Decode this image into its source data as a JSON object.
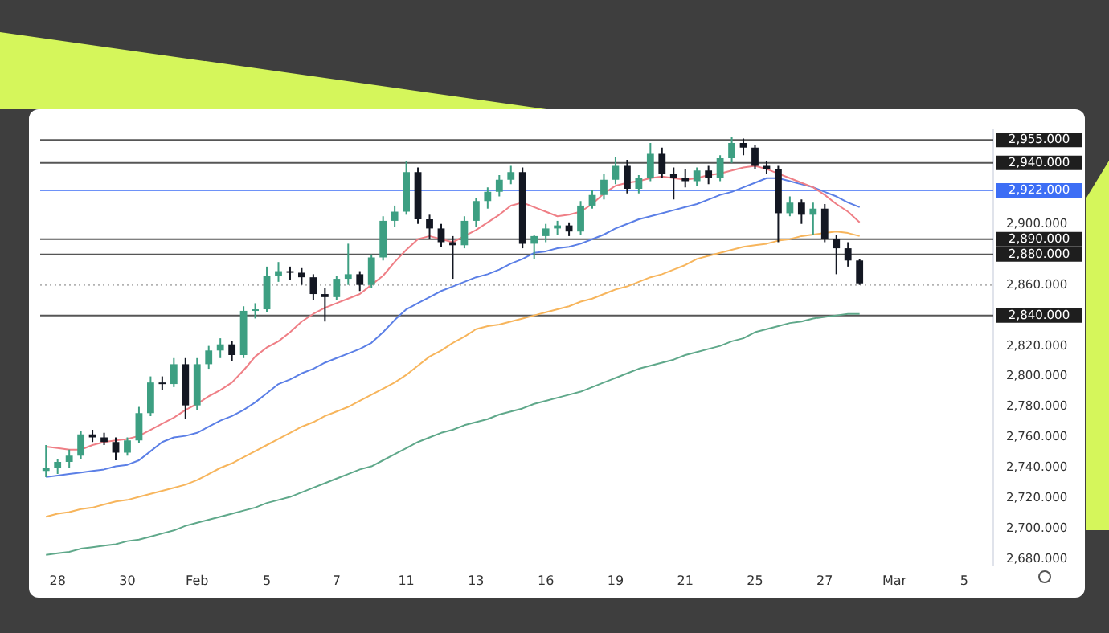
{
  "chart_data": {
    "type": "candlestick",
    "categories": [
      null,
      "28",
      null,
      null,
      null,
      null,
      null,
      "30",
      null,
      null,
      null,
      null,
      null,
      "Feb",
      null,
      null,
      null,
      null,
      null,
      "5",
      null,
      null,
      null,
      null,
      null,
      "7",
      null,
      null,
      null,
      null,
      null,
      "11",
      null,
      null,
      null,
      null,
      null,
      "13",
      null,
      null,
      null,
      null,
      null,
      "16",
      null,
      null,
      null,
      null,
      null,
      "19",
      null,
      null,
      null,
      null,
      null,
      "21",
      null,
      null,
      null,
      null,
      null,
      "25",
      null,
      null,
      null,
      null,
      null,
      "27",
      null,
      null,
      null,
      null,
      null,
      "Mar",
      null,
      null,
      null,
      null,
      null,
      "5",
      null,
      null
    ],
    "ohlc": [
      [
        2738,
        2755,
        2734,
        2740
      ],
      [
        2740,
        2746,
        2736,
        2744
      ],
      [
        2744,
        2752,
        2740,
        2748
      ],
      [
        2748,
        2764,
        2746,
        2762
      ],
      [
        2762,
        2765,
        2757,
        2760
      ],
      [
        2760,
        2763,
        2755,
        2757
      ],
      [
        2757,
        2760,
        2745,
        2750
      ],
      [
        2750,
        2760,
        2748,
        2758
      ],
      [
        2758,
        2780,
        2756,
        2776
      ],
      [
        2776,
        2800,
        2774,
        2796
      ],
      [
        2796,
        2800,
        2791,
        2795
      ],
      [
        2795,
        2812,
        2793,
        2808
      ],
      [
        2808,
        2812,
        2772,
        2781
      ],
      [
        2781,
        2812,
        2778,
        2808
      ],
      [
        2808,
        2820,
        2805,
        2817
      ],
      [
        2817,
        2825,
        2812,
        2821
      ],
      [
        2821,
        2823,
        2810,
        2814
      ],
      [
        2814,
        2846,
        2812,
        2843
      ],
      [
        2843,
        2848,
        2838,
        2844
      ],
      [
        2844,
        2872,
        2842,
        2866
      ],
      [
        2866,
        2875,
        2862,
        2869
      ],
      [
        2869,
        2872,
        2863,
        2868
      ],
      [
        2868,
        2871,
        2860,
        2865
      ],
      [
        2865,
        2867,
        2850,
        2854
      ],
      [
        2854,
        2858,
        2836,
        2852
      ],
      [
        2852,
        2866,
        2850,
        2864
      ],
      [
        2864,
        2887,
        2860,
        2867
      ],
      [
        2867,
        2869,
        2856,
        2860
      ],
      [
        2860,
        2880,
        2858,
        2878
      ],
      [
        2878,
        2905,
        2876,
        2902
      ],
      [
        2902,
        2912,
        2898,
        2908
      ],
      [
        2908,
        2941,
        2906,
        2934
      ],
      [
        2934,
        2937,
        2900,
        2903
      ],
      [
        2903,
        2906,
        2890,
        2897
      ],
      [
        2897,
        2900,
        2885,
        2888
      ],
      [
        2888,
        2892,
        2864,
        2886
      ],
      [
        2886,
        2905,
        2884,
        2902
      ],
      [
        2902,
        2917,
        2898,
        2915
      ],
      [
        2915,
        2924,
        2910,
        2921
      ],
      [
        2921,
        2932,
        2918,
        2929
      ],
      [
        2929,
        2938,
        2926,
        2934
      ],
      [
        2934,
        2937,
        2884,
        2887
      ],
      [
        2887,
        2893,
        2877,
        2892
      ],
      [
        2892,
        2900,
        2888,
        2897
      ],
      [
        2897,
        2902,
        2893,
        2899
      ],
      [
        2899,
        2901,
        2892,
        2895
      ],
      [
        2895,
        2915,
        2893,
        2912
      ],
      [
        2912,
        2922,
        2910,
        2919
      ],
      [
        2919,
        2933,
        2916,
        2929
      ],
      [
        2929,
        2944,
        2926,
        2938
      ],
      [
        2938,
        2942,
        2920,
        2923
      ],
      [
        2923,
        2932,
        2920,
        2930
      ],
      [
        2930,
        2953,
        2928,
        2946
      ],
      [
        2946,
        2950,
        2930,
        2933
      ],
      [
        2933,
        2937,
        2916,
        2930
      ],
      [
        2930,
        2936,
        2924,
        2928
      ],
      [
        2928,
        2937,
        2925,
        2935
      ],
      [
        2935,
        2938,
        2926,
        2930
      ],
      [
        2930,
        2945,
        2928,
        2943
      ],
      [
        2943,
        2957,
        2940,
        2953
      ],
      [
        2953,
        2956,
        2945,
        2950
      ],
      [
        2950,
        2952,
        2936,
        2938
      ],
      [
        2938,
        2941,
        2933,
        2936
      ],
      [
        2936,
        2938,
        2888,
        2907
      ],
      [
        2907,
        2918,
        2905,
        2914
      ],
      [
        2914,
        2916,
        2900,
        2906
      ],
      [
        2906,
        2914,
        2893,
        2910
      ],
      [
        2910,
        2913,
        2888,
        2890
      ],
      [
        2890,
        2893,
        2867,
        2884
      ],
      [
        2884,
        2888,
        2872,
        2876
      ],
      [
        2876,
        2877,
        2860,
        2861
      ],
      null,
      null,
      null,
      null,
      null,
      null,
      null,
      null,
      null,
      null,
      null
    ],
    "colors": [
      "#3d9f82",
      "#3d9f82",
      "#3d9f82",
      "#3d9f82",
      "#131722",
      "#131722",
      "#131722",
      "#3d9f82",
      "#3d9f82",
      "#3d9f82",
      "#131722",
      "#3d9f82",
      "#131722",
      "#3d9f82",
      "#3d9f82",
      "#3d9f82",
      "#131722",
      "#3d9f82",
      "#3d9f82",
      "#3d9f82",
      "#3d9f82",
      "#131722",
      "#131722",
      "#131722",
      "#131722",
      "#3d9f82",
      "#3d9f82",
      "#131722",
      "#3d9f82",
      "#3d9f82",
      "#3d9f82",
      "#3d9f82",
      "#131722",
      "#131722",
      "#131722",
      "#131722",
      "#3d9f82",
      "#3d9f82",
      "#3d9f82",
      "#3d9f82",
      "#3d9f82",
      "#131722",
      "#3d9f82",
      "#3d9f82",
      "#3d9f82",
      "#131722",
      "#3d9f82",
      "#3d9f82",
      "#3d9f82",
      "#3d9f82",
      "#131722",
      "#3d9f82",
      "#3d9f82",
      "#131722",
      "#131722",
      "#131722",
      "#3d9f82",
      "#131722",
      "#3d9f82",
      "#3d9f82",
      "#131722",
      "#131722",
      "#131722",
      "#131722",
      "#3d9f82",
      "#131722",
      "#3d9f82",
      "#131722",
      "#131722",
      "#131722",
      "#131722",
      null,
      null,
      null,
      null,
      null,
      null,
      null,
      null,
      null,
      null,
      null
    ],
    "series": [
      {
        "type": "line",
        "color": "#ef7f86",
        "values": [
          2754,
          2753,
          2752,
          2752,
          2755,
          2757,
          2758,
          2759,
          2761,
          2765,
          2769,
          2773,
          2778,
          2782,
          2787,
          2791,
          2796,
          2804,
          2813,
          2819,
          2823,
          2829,
          2836,
          2841,
          2845,
          2848,
          2851,
          2854,
          2860,
          2866,
          2875,
          2883,
          2890,
          2892,
          2890,
          2888,
          2892,
          2896,
          2901,
          2906,
          2912,
          2914,
          2911,
          2908,
          2905,
          2906,
          2908,
          2913,
          2920,
          2925,
          2927,
          2928,
          2930,
          2931,
          2930,
          2929,
          2930,
          2932,
          2933,
          2935,
          2937,
          2938,
          2936,
          2933,
          2930,
          2927,
          2924,
          2919,
          2913,
          2908,
          2901,
          null,
          null,
          null,
          null,
          null,
          null,
          null,
          null,
          null,
          null,
          null
        ]
      },
      {
        "type": "line",
        "color": "#5b7fe6",
        "values": [
          2734,
          2735,
          2736,
          2737,
          2738,
          2739,
          2741,
          2742,
          2745,
          2751,
          2757,
          2760,
          2761,
          2763,
          2767,
          2771,
          2774,
          2778,
          2783,
          2789,
          2795,
          2798,
          2802,
          2805,
          2809,
          2812,
          2815,
          2818,
          2822,
          2829,
          2837,
          2844,
          2848,
          2852,
          2856,
          2859,
          2862,
          2865,
          2867,
          2870,
          2874,
          2877,
          2881,
          2882,
          2884,
          2885,
          2887,
          2890,
          2893,
          2897,
          2900,
          2903,
          2905,
          2907,
          2909,
          2911,
          2913,
          2916,
          2919,
          2921,
          2924,
          2927,
          2930,
          2930,
          2928,
          2926,
          2924,
          2921,
          2918,
          2914,
          2911,
          null,
          null,
          null,
          null,
          null,
          null,
          null,
          null,
          null,
          null,
          null
        ]
      },
      {
        "type": "line",
        "color": "#f7b55c",
        "values": [
          2708,
          2710,
          2711,
          2713,
          2714,
          2716,
          2718,
          2719,
          2721,
          2723,
          2725,
          2727,
          2729,
          2732,
          2736,
          2740,
          2743,
          2747,
          2751,
          2755,
          2759,
          2763,
          2767,
          2770,
          2774,
          2777,
          2780,
          2784,
          2788,
          2792,
          2796,
          2801,
          2807,
          2813,
          2817,
          2822,
          2826,
          2831,
          2833,
          2834,
          2836,
          2838,
          2840,
          2842,
          2844,
          2846,
          2849,
          2851,
          2854,
          2857,
          2859,
          2862,
          2865,
          2867,
          2870,
          2873,
          2877,
          2879,
          2881,
          2883,
          2885,
          2886,
          2887,
          2889,
          2890,
          2892,
          2893,
          2894,
          2895,
          2894,
          2892,
          null,
          null,
          null,
          null,
          null,
          null,
          null,
          null,
          null,
          null,
          null
        ]
      },
      {
        "type": "line",
        "color": "#5fa88a",
        "values": [
          2683,
          2684,
          2685,
          2687,
          2688,
          2689,
          2690,
          2692,
          2693,
          2695,
          2697,
          2699,
          2702,
          2704,
          2706,
          2708,
          2710,
          2712,
          2714,
          2717,
          2719,
          2721,
          2724,
          2727,
          2730,
          2733,
          2736,
          2739,
          2741,
          2745,
          2749,
          2753,
          2757,
          2760,
          2763,
          2765,
          2768,
          2770,
          2772,
          2775,
          2777,
          2779,
          2782,
          2784,
          2786,
          2788,
          2790,
          2793,
          2796,
          2799,
          2802,
          2805,
          2807,
          2809,
          2811,
          2814,
          2816,
          2818,
          2820,
          2823,
          2825,
          2829,
          2831,
          2833,
          2835,
          2836,
          2838,
          2839,
          2840,
          2841,
          2841,
          null,
          null,
          null,
          null,
          null,
          null,
          null,
          null,
          null,
          null,
          null
        ]
      }
    ],
    "ylim": [
      2676,
      2962
    ],
    "yticks": [
      {
        "value": 2680,
        "label": "2,680.000"
      },
      {
        "value": 2700,
        "label": "2,700.000"
      },
      {
        "value": 2720,
        "label": "2,720.000"
      },
      {
        "value": 2740,
        "label": "2,740.000"
      },
      {
        "value": 2760,
        "label": "2,760.000"
      },
      {
        "value": 2780,
        "label": "2,780.000"
      },
      {
        "value": 2800,
        "label": "2,800.000"
      },
      {
        "value": 2820,
        "label": "2,820.000"
      },
      {
        "value": 2840,
        "label": null
      },
      {
        "value": 2860,
        "label": "2,860.000"
      },
      {
        "value": 2880,
        "label": null
      },
      {
        "value": 2900,
        "label": "2,900.000"
      },
      {
        "value": 2940,
        "label": null
      }
    ],
    "ref_lines": [
      {
        "axis": "y",
        "value": 2955,
        "label": "2,955.000",
        "color": "#1e1e1e"
      },
      {
        "axis": "y",
        "value": 2940,
        "label": "2,940.000",
        "color": "#1e1e1e"
      },
      {
        "axis": "y",
        "value": 2922,
        "label": "2,922.000",
        "color": "#3d6ef5"
      },
      {
        "axis": "y",
        "value": 2890,
        "label": "2,890.000",
        "color": "#1e1e1e"
      },
      {
        "axis": "y",
        "value": 2880,
        "label": "2,880.000",
        "color": "#1e1e1e"
      },
      {
        "axis": "y",
        "value": 2860,
        "color": "#9a9a9a",
        "line_style": "dotted"
      },
      {
        "axis": "y",
        "value": 2840,
        "label": "2,840.000",
        "color": "#1e1e1e"
      }
    ],
    "marker": "none",
    "grid": false,
    "legend": false
  }
}
